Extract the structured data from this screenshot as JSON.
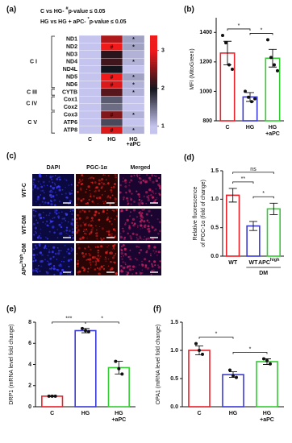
{
  "chart_data": [
    {
      "type": "heatmap",
      "label": "(a)",
      "legend": [
        {
          "text": "C vs HG- ",
          "sup": "#",
          "after": "p-value ≤ 0.05"
        },
        {
          "text": "HG vs HG + aPC- ",
          "sup": "*",
          "after": "p-value ≤ 0.05"
        }
      ],
      "rows": [
        "ND1",
        "ND2",
        "ND3",
        "ND4",
        "ND4L",
        "ND5",
        "ND6",
        "CYTB",
        "Cox1",
        "Cox2",
        "Cox3",
        "ATP6",
        "ATP8"
      ],
      "row_groups": [
        "C I",
        "C I",
        "C I",
        "C I",
        "C I",
        "C I",
        "C I",
        "C III",
        "C IV",
        "C IV",
        "C V",
        "C V",
        "C V"
      ],
      "series": [
        {
          "name": "C",
          "values": [
            1.0,
            1.0,
            1.0,
            1.0,
            1.0,
            1.0,
            1.0,
            1.0,
            1.0,
            1.0,
            1.0,
            1.0,
            1.0
          ],
          "annotations": [
            null,
            null,
            null,
            null,
            null,
            null,
            null,
            null,
            null,
            null,
            null,
            null,
            null
          ]
        },
        {
          "name": "HG",
          "values": [
            2.7,
            3.3,
            2.1,
            2.2,
            2.0,
            3.1,
            2.9,
            2.3,
            1.6,
            1.5,
            2.5,
            1.7,
            2.9
          ],
          "annotations": [
            null,
            "#",
            null,
            null,
            null,
            "#",
            "#",
            null,
            null,
            null,
            "#",
            null,
            "#"
          ]
        },
        {
          "name": "HG\n+aPC",
          "values": [
            1.2,
            1.2,
            1.1,
            1.1,
            1.0,
            1.2,
            1.1,
            1.1,
            1.0,
            1.0,
            1.1,
            1.0,
            1.1
          ],
          "annotations": [
            "*",
            "*",
            null,
            "*",
            null,
            "*",
            "*",
            "*",
            null,
            null,
            "*",
            null,
            "*"
          ]
        }
      ],
      "colorscale": [
        {
          "value": 1,
          "color": "#c4c4ee"
        },
        {
          "value": 2,
          "color": "#14141c"
        },
        {
          "value": 3,
          "color": "#f01a1a"
        }
      ],
      "clim": [
        0.8,
        3.4
      ],
      "cticks": [
        1,
        2,
        3
      ]
    },
    {
      "type": "bar",
      "label": "(b)",
      "ylabel": [
        "MFI (MitoGreen)"
      ],
      "categories": [
        "C",
        "HG",
        "HG\n+aPC"
      ],
      "values": [
        1260,
        962,
        1225
      ],
      "errors": [
        80,
        30,
        60
      ],
      "points": [
        [
          1380,
          1330,
          1180,
          1150
        ],
        [
          1000,
          960,
          930,
          950
        ],
        [
          1350,
          1230,
          1180,
          1140
        ]
      ],
      "colors": [
        "#e8212a",
        "#3a3ad6",
        "#33cc33"
      ],
      "ylim": [
        800,
        1500
      ],
      "yticks": [
        800,
        1000,
        1200,
        1400
      ],
      "comparisons": [
        {
          "from": 0,
          "to": 1,
          "label": "*"
        },
        {
          "from": 1,
          "to": 2,
          "label": "*"
        }
      ]
    },
    {
      "type": "image-grid",
      "label": "(c)",
      "columns": [
        "DAPI",
        "PGC-1α",
        "Merged"
      ],
      "rows": [
        {
          "text": "WT-C"
        },
        {
          "text": "WT-DM"
        },
        {
          "text": "APC",
          "sup": "high",
          "after": "-DM"
        }
      ]
    },
    {
      "type": "bar",
      "label": "(d)",
      "ylabel": [
        "Relative fluorescence",
        "of PGC-1α (fold of change)"
      ],
      "categories": [
        "WT",
        "WT",
        "APC"
      ],
      "category_superscripts": [
        null,
        null,
        "high"
      ],
      "group_labels": [
        null,
        "DM",
        "DM"
      ],
      "values": [
        1.07,
        0.53,
        0.83
      ],
      "errors": [
        0.12,
        0.08,
        0.1
      ],
      "colors": [
        "#e8212a",
        "#3a3ad6",
        "#33cc33"
      ],
      "ylim": [
        0,
        1.5
      ],
      "yticks": [
        {
          "value": 0,
          "label": "0.0"
        },
        {
          "value": 0.5,
          "label": "0.5"
        },
        {
          "value": 1,
          "label": "1.0"
        },
        {
          "value": 1.5,
          "label": "1.5"
        }
      ],
      "comparisons": [
        {
          "from": 0,
          "to": 1,
          "label": "**"
        },
        {
          "from": 1,
          "to": 2,
          "label": "*"
        },
        {
          "from": 0,
          "to": 2,
          "label": "ns"
        }
      ]
    },
    {
      "type": "bar",
      "label": "(e)",
      "ylabel": [
        "DRP1 (mRNA level fold change)"
      ],
      "categories": [
        "C",
        "HG",
        "HG\n+aPC"
      ],
      "values": [
        1.0,
        7.2,
        3.7
      ],
      "errors": [
        0.05,
        0.2,
        0.6
      ],
      "points": [
        [
          1.0,
          1.0,
          1.0
        ],
        [
          7.4,
          7.2,
          7.1
        ],
        [
          4.3,
          3.6,
          3.1
        ]
      ],
      "colors": [
        "#e8212a",
        "#3a3ad6",
        "#33cc33"
      ],
      "ylim": [
        0,
        8
      ],
      "yticks": [
        0,
        2,
        4,
        6,
        8
      ],
      "comparisons": [
        {
          "from": 0,
          "to": 1,
          "label": "***"
        },
        {
          "from": 1,
          "to": 2,
          "label": "*"
        }
      ]
    },
    {
      "type": "bar",
      "label": "(f)",
      "ylabel": [
        "OPA1 (mRNA level fold change)"
      ],
      "categories": [
        "C",
        "HG",
        "HG\n+aPC"
      ],
      "values": [
        1.0,
        0.57,
        0.8
      ],
      "errors": [
        0.08,
        0.05,
        0.05
      ],
      "points": [
        [
          1.12,
          1.0,
          0.93
        ],
        [
          0.65,
          0.55,
          0.52
        ],
        [
          0.85,
          0.82,
          0.76
        ]
      ],
      "colors": [
        "#e8212a",
        "#3a3ad6",
        "#33cc33"
      ],
      "ylim": [
        0,
        1.5
      ],
      "yticks": [
        {
          "value": 0,
          "label": "0.0"
        },
        {
          "value": 0.5,
          "label": "0.5"
        },
        {
          "value": 1,
          "label": "1.0"
        },
        {
          "value": 1.5,
          "label": "1.5"
        }
      ],
      "comparisons": [
        {
          "from": 0,
          "to": 1,
          "label": "*"
        },
        {
          "from": 1,
          "to": 2,
          "label": "*"
        }
      ]
    }
  ]
}
